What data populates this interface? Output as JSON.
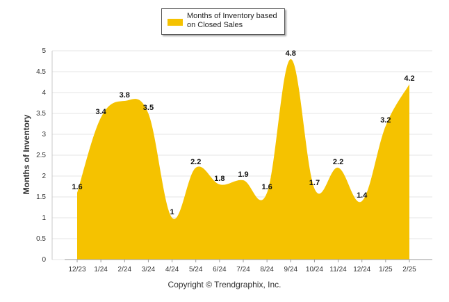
{
  "legend": {
    "label": "Months of Inventory based on Closed Sales",
    "color": "#F5C200"
  },
  "footer": {
    "copyright": "Copyright © Trendgraphix, Inc."
  },
  "chart_data": {
    "type": "area",
    "categories": [
      "12/23",
      "1/24",
      "2/24",
      "3/24",
      "4/24",
      "5/24",
      "6/24",
      "7/24",
      "8/24",
      "9/24",
      "10/24",
      "11/24",
      "12/24",
      "1/25",
      "2/25"
    ],
    "series": [
      {
        "name": "Months of Inventory based on Closed Sales",
        "values": [
          1.6,
          3.4,
          3.8,
          3.5,
          1,
          2.2,
          1.8,
          1.9,
          1.6,
          4.8,
          1.7,
          2.2,
          1.4,
          3.2,
          4.2
        ]
      }
    ],
    "data_labels": [
      "1.6",
      "3.4",
      "3.8",
      "3.5",
      "1",
      "2.2",
      "1.8",
      "1.9",
      "1.6",
      "4.8",
      "1.7",
      "2.2",
      "1.4",
      "3.2",
      "4.2"
    ],
    "ylabel": "Months of Inventory",
    "ylim": [
      0,
      5
    ],
    "yticks": [
      "0",
      "0.5",
      "1",
      "1.5",
      "2",
      "2.5",
      "3",
      "3.5",
      "4",
      "4.5",
      "5"
    ],
    "grid": true,
    "legend_position": "top-center",
    "fill_color": "#F5C200"
  }
}
